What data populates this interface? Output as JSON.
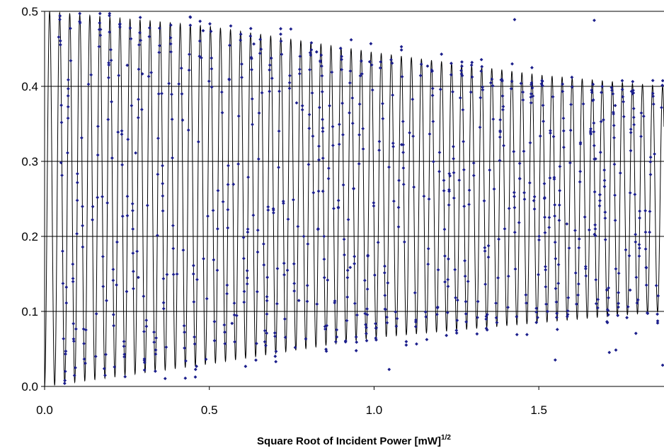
{
  "chart_data": {
    "type": "scatter",
    "title": "",
    "xlabel": "Square Root of Incident Power [mW]",
    "xlabel_superscript": "1/2",
    "ylabel": "",
    "xlim": [
      0.0,
      1.88
    ],
    "ylim": [
      0.0,
      0.5
    ],
    "x_ticks": [
      "0.0",
      "0.5",
      "1.0",
      "1.5"
    ],
    "x_tick_values": [
      0.0,
      0.5,
      1.0,
      1.5
    ],
    "y_ticks": [
      "0.0",
      "0.1",
      "0.2",
      "0.3",
      "0.4",
      "0.5"
    ],
    "y_tick_values": [
      0.0,
      0.1,
      0.2,
      0.3,
      0.4,
      0.5
    ],
    "grid": "horizontal",
    "legend": "none",
    "model_curve": {
      "style": "line",
      "color": "#000000",
      "oscillation_period": 0.0305,
      "envelope": [
        {
          "x": 0.0,
          "min": 0.0,
          "max": 0.5
        },
        {
          "x": 0.5,
          "min": 0.03,
          "max": 0.48
        },
        {
          "x": 1.0,
          "min": 0.065,
          "max": 0.445
        },
        {
          "x": 1.5,
          "min": 0.085,
          "max": 0.415
        },
        {
          "x": 1.88,
          "min": 0.1,
          "max": 0.4
        }
      ]
    },
    "series": [
      {
        "color": "#1c1f8c",
        "marker": "diamond",
        "sample_count": 900,
        "points": []
      }
    ]
  }
}
